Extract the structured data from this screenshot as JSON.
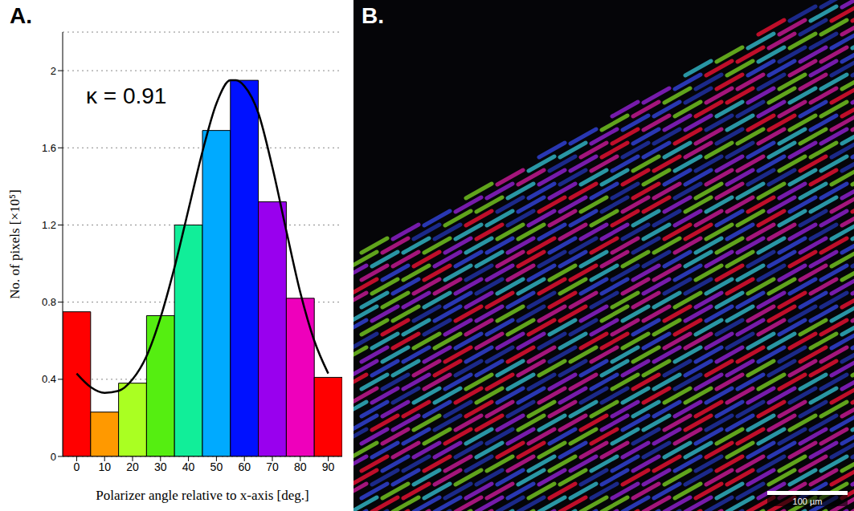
{
  "chart_data": {
    "type": "histogram",
    "panel": "A.",
    "annotation": "κ = 0.91",
    "x_label": "Polarizer angle relative to x-axis [deg.]",
    "y_label": "No. of pixels [×10⁵]",
    "bins": [
      -5,
      5,
      15,
      25,
      35,
      45,
      55,
      65,
      75,
      85,
      95
    ],
    "values": [
      0.75,
      0.23,
      0.38,
      0.73,
      1.2,
      1.69,
      1.95,
      1.32,
      0.82,
      0.41
    ],
    "colors": [
      "#ff0000",
      "#ff9900",
      "#aaff22",
      "#55ee11",
      "#11ee99",
      "#00aaff",
      "#0011ff",
      "#9900ee",
      "#ee00bb",
      "#ff0000"
    ],
    "fit": {
      "type": "line",
      "color": "#000000",
      "x": [
        0,
        5,
        10,
        15,
        20,
        25,
        30,
        35,
        40,
        45,
        50,
        55,
        57,
        60,
        65,
        70,
        75,
        80,
        85,
        90
      ],
      "values": [
        0.43,
        0.36,
        0.33,
        0.34,
        0.4,
        0.52,
        0.72,
        0.98,
        1.28,
        1.58,
        1.83,
        1.95,
        1.95,
        1.92,
        1.78,
        1.5,
        1.17,
        0.85,
        0.6,
        0.43
      ]
    },
    "xlim": [
      -5,
      95
    ],
    "xticks": [
      0,
      10,
      20,
      30,
      40,
      50,
      60,
      70,
      80,
      90
    ],
    "ylim": [
      0,
      2.2
    ],
    "yticks": [
      0,
      0.4,
      0.8,
      1.2,
      1.6,
      2
    ],
    "grid": true
  },
  "image": {
    "panel": "B.",
    "scale_bar": "100 µm"
  }
}
